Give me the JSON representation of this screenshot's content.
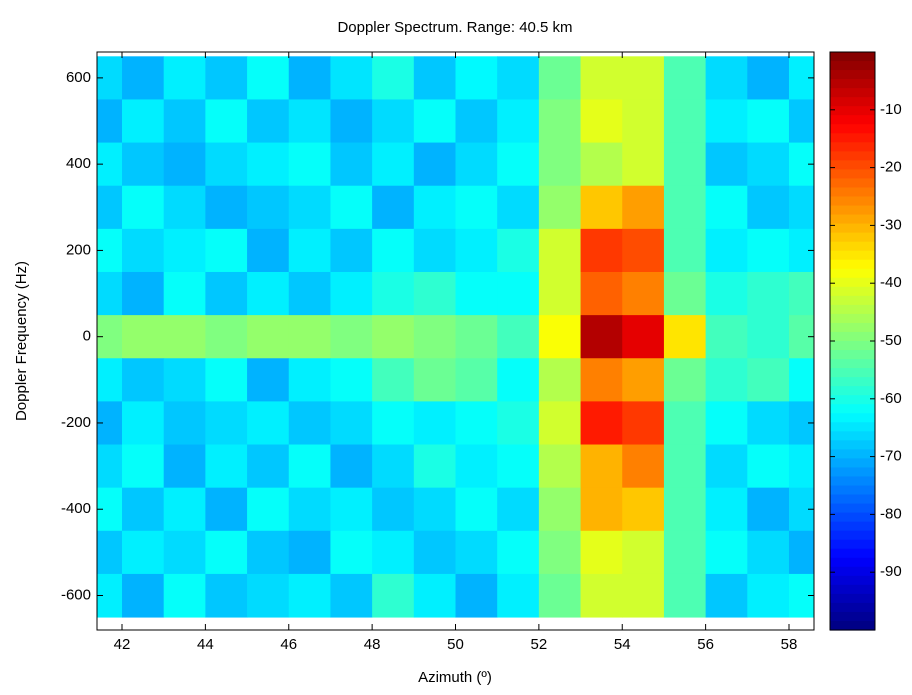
{
  "chart_data": {
    "type": "heatmap",
    "title": "Doppler Spectrum. Range: 40.5 km",
    "x_label": "Azimuth (º)",
    "y_label": "Doppler Frequency (Hz)",
    "x": [
      41.5,
      42.5,
      43.5,
      44.5,
      45.5,
      46.5,
      47.5,
      48.5,
      49.5,
      50.5,
      51.5,
      52.5,
      53.5,
      54.5,
      55.5,
      56.5,
      57.5,
      58.5
    ],
    "y": [
      600,
      500,
      400,
      300,
      200,
      100,
      0,
      -100,
      -200,
      -300,
      -400,
      -500,
      -600
    ],
    "z": [
      [
        -66,
        -70,
        -64,
        -68,
        -62,
        -70,
        -65,
        -60,
        -68,
        -63,
        -66,
        -52,
        -42,
        -42,
        -55,
        -66,
        -70,
        -64
      ],
      [
        -70,
        -64,
        -68,
        -62,
        -68,
        -65,
        -70,
        -66,
        -62,
        -68,
        -64,
        -50,
        -40,
        -42,
        -55,
        -64,
        -62,
        -68
      ],
      [
        -64,
        -68,
        -70,
        -66,
        -64,
        -62,
        -68,
        -64,
        -70,
        -66,
        -62,
        -50,
        -45,
        -42,
        -55,
        -68,
        -66,
        -62
      ],
      [
        -68,
        -62,
        -66,
        -70,
        -68,
        -66,
        -62,
        -70,
        -64,
        -62,
        -66,
        -48,
        -32,
        -28,
        -55,
        -62,
        -68,
        -66
      ],
      [
        -62,
        -66,
        -64,
        -62,
        -70,
        -64,
        -68,
        -62,
        -66,
        -64,
        -60,
        -42,
        -18,
        -20,
        -55,
        -64,
        -62,
        -64
      ],
      [
        -66,
        -70,
        -62,
        -68,
        -64,
        -68,
        -64,
        -60,
        -58,
        -62,
        -62,
        -42,
        -22,
        -25,
        -52,
        -60,
        -58,
        -56
      ],
      [
        -50,
        -48,
        -48,
        -50,
        -48,
        -48,
        -50,
        -48,
        -50,
        -52,
        -56,
        -38,
        -5,
        -10,
        -35,
        -56,
        -58,
        -54
      ],
      [
        -64,
        -68,
        -66,
        -62,
        -70,
        -64,
        -62,
        -56,
        -52,
        -54,
        -62,
        -45,
        -25,
        -28,
        -52,
        -58,
        -56,
        -62
      ],
      [
        -70,
        -64,
        -68,
        -66,
        -64,
        -68,
        -66,
        -62,
        -64,
        -62,
        -60,
        -42,
        -15,
        -18,
        -55,
        -62,
        -66,
        -68
      ],
      [
        -66,
        -62,
        -70,
        -64,
        -68,
        -62,
        -70,
        -66,
        -60,
        -64,
        -62,
        -45,
        -30,
        -25,
        -55,
        -66,
        -62,
        -64
      ],
      [
        -62,
        -68,
        -64,
        -70,
        -62,
        -66,
        -64,
        -68,
        -66,
        -62,
        -66,
        -48,
        -30,
        -32,
        -55,
        -64,
        -70,
        -66
      ],
      [
        -68,
        -64,
        -66,
        -62,
        -68,
        -70,
        -62,
        -64,
        -68,
        -66,
        -62,
        -50,
        -40,
        -42,
        -55,
        -62,
        -66,
        -70
      ],
      [
        -64,
        -70,
        -62,
        -68,
        -66,
        -64,
        -68,
        -58,
        -64,
        -70,
        -64,
        -52,
        -42,
        -42,
        -55,
        -68,
        -64,
        -62
      ]
    ],
    "xlim": [
      41.4,
      58.6
    ],
    "ylim": [
      -680,
      660
    ],
    "xticks": [
      42,
      44,
      46,
      48,
      50,
      52,
      54,
      56,
      58
    ],
    "yticks": [
      -600,
      -400,
      -200,
      0,
      200,
      400,
      600
    ],
    "colormap": "jet",
    "clim": [
      -100,
      0
    ],
    "cticks": [
      -90,
      -80,
      -70,
      -60,
      -50,
      -40,
      -30,
      -20,
      -10
    ]
  }
}
